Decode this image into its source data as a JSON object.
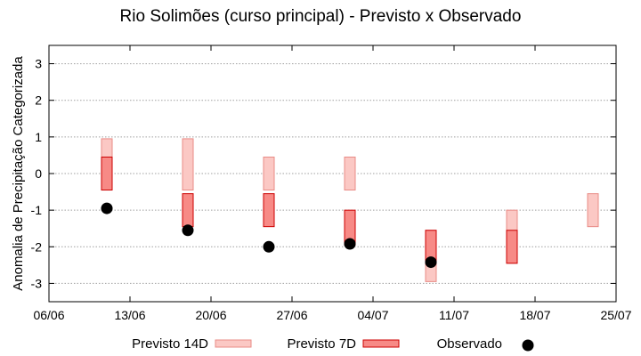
{
  "chart_data": {
    "type": "range-bar-scatter",
    "title": "Rio Solimões (curso principal) - Previsto x Observado",
    "ylabel": "Anomalia de Precipitação Categorizada",
    "xlabel": "",
    "ylim": [
      -3.5,
      3.5
    ],
    "xlim": [
      "06/06",
      "25/07"
    ],
    "yticks": [
      "3",
      "2",
      "1",
      "0",
      "-1",
      "-2",
      "-3"
    ],
    "xticks": [
      "06/06",
      "13/06",
      "20/06",
      "27/06",
      "04/07",
      "11/07",
      "18/07",
      "25/07"
    ],
    "grid": "horizontal dotted",
    "legend_placement": "bottom",
    "series": [
      {
        "name": "Previsto 14D",
        "color": "#fbc8c4",
        "stroke": "#e88b86",
        "ranges": [
          {
            "x": "11/06",
            "low": -0.45,
            "high": 0.95
          },
          {
            "x": "18/06",
            "low": -0.45,
            "high": 0.95
          },
          {
            "x": "25/06",
            "low": -0.45,
            "high": 0.45
          },
          {
            "x": "02/07",
            "low": -0.45,
            "high": 0.45
          },
          {
            "x": "09/07",
            "low": -2.95,
            "high": -1.55
          },
          {
            "x": "16/07",
            "low": -2.45,
            "high": -1.0
          },
          {
            "x": "23/07",
            "low": -1.45,
            "high": -0.55
          }
        ]
      },
      {
        "name": "Previsto 7D",
        "color": "#f78a86",
        "stroke": "#cc0000",
        "ranges": [
          {
            "x": "11/06",
            "low": -0.45,
            "high": 0.45
          },
          {
            "x": "18/06",
            "low": -1.45,
            "high": -0.55
          },
          {
            "x": "25/06",
            "low": -1.45,
            "high": -0.55
          },
          {
            "x": "02/07",
            "low": -1.95,
            "high": -1.0
          },
          {
            "x": "09/07",
            "low": -2.45,
            "high": -1.55
          },
          {
            "x": "16/07",
            "low": -2.45,
            "high": -1.55
          }
        ]
      },
      {
        "name": "Observado",
        "color": "#000000",
        "points": [
          {
            "x": "11/06",
            "y": -0.95
          },
          {
            "x": "18/06",
            "y": -1.55
          },
          {
            "x": "25/06",
            "y": -2.0
          },
          {
            "x": "02/07",
            "y": -1.92
          },
          {
            "x": "09/07",
            "y": -2.42
          }
        ]
      }
    ]
  },
  "legend": [
    {
      "label": "Previsto 14D"
    },
    {
      "label": "Previsto 7D"
    },
    {
      "label": "Observado"
    }
  ]
}
